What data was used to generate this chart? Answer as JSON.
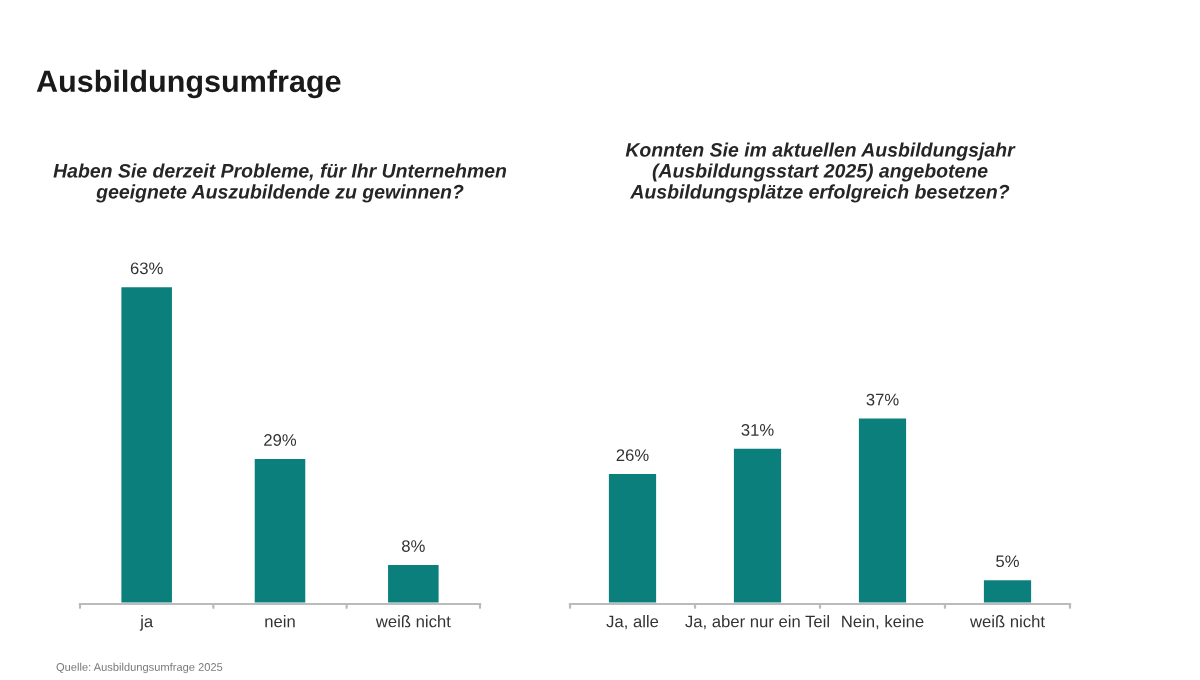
{
  "chart_data": [
    {
      "type": "bar",
      "title": "Haben Sie derzeit Probleme, für Ihr Unternehmen\ngeeignete Auszubildende zu gewinnen?",
      "categories": [
        "ja",
        "nein",
        "weiß nicht"
      ],
      "values": [
        63,
        29,
        8
      ],
      "value_labels": [
        "63%",
        "29%",
        "8%"
      ],
      "color": "#0b7f7b",
      "grid": false,
      "legend": false,
      "tick_labels": "x",
      "annotations": [
        "Ausbildungsumfrage"
      ]
    },
    {
      "type": "bar",
      "title": "Konnten Sie im aktuellen Ausbildungsjahr\n(Ausbildungsstart 2025) angebotene\nAusbildungsplätze erfolgreich besetzen?",
      "categories": [
        "Ja, alle",
        "Ja, aber nur ein Teil",
        "Nein, keine",
        "weiß nicht"
      ],
      "values": [
        26,
        31,
        37,
        5
      ],
      "value_labels": [
        "26%",
        "31%",
        "37%",
        "5%"
      ],
      "color": "#0b7f7b",
      "grid": false,
      "legend": false,
      "tick_labels": "x",
      "annotations": [
        "Quelle: Ausbildungsumfrage 2025"
      ]
    }
  ]
}
